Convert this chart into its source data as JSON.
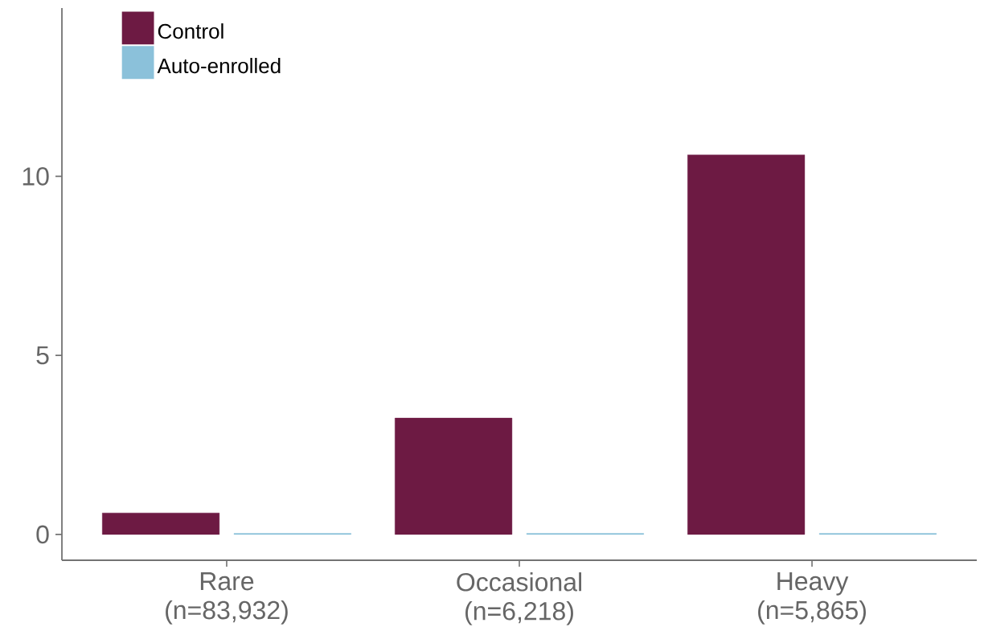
{
  "chart_data": {
    "type": "bar",
    "categories": [
      "Rare (n=83,932)",
      "Occasional (n=6,218)",
      "Heavy (n=5,865)"
    ],
    "series": [
      {
        "name": "Control",
        "color": "#6d1a43",
        "values": [
          0.6,
          3.25,
          10.6
        ]
      },
      {
        "name": "Auto-enrolled",
        "color": "#8bc1da",
        "values": [
          0.03,
          0.03,
          0.03
        ]
      }
    ],
    "ylim": [
      -0.72,
      14.7
    ],
    "yticks": [
      0,
      5,
      10
    ],
    "grid": false,
    "legend": "top left"
  }
}
